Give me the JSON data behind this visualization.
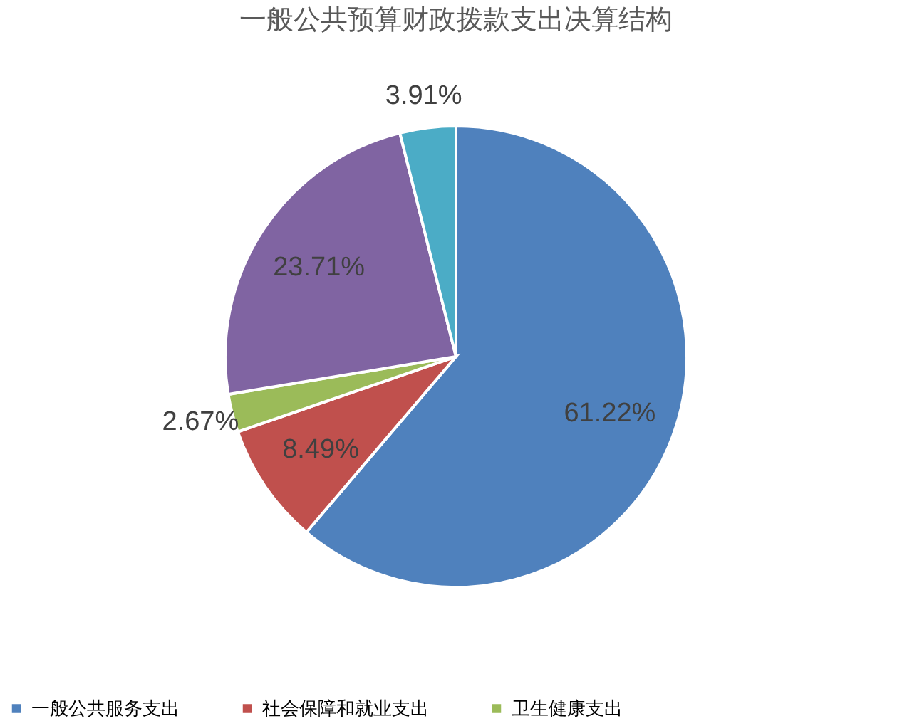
{
  "chart_data": {
    "type": "pie",
    "title": "一般公共预算财政拨款支出决算结构",
    "categories": [
      "一般公共服务支出",
      "社会保障和就业支出",
      "卫生健康支出",
      null,
      null
    ],
    "values": [
      61.22,
      8.49,
      2.67,
      23.71,
      3.91
    ],
    "colors": [
      "#4f81bd",
      "#c0504d",
      "#9bbb59",
      "#8064a2",
      "#4bacc6"
    ],
    "value_labels": [
      "61.22%",
      "8.49%",
      "2.67%",
      "23.71%",
      "3.91%"
    ],
    "legend": "bottom"
  }
}
